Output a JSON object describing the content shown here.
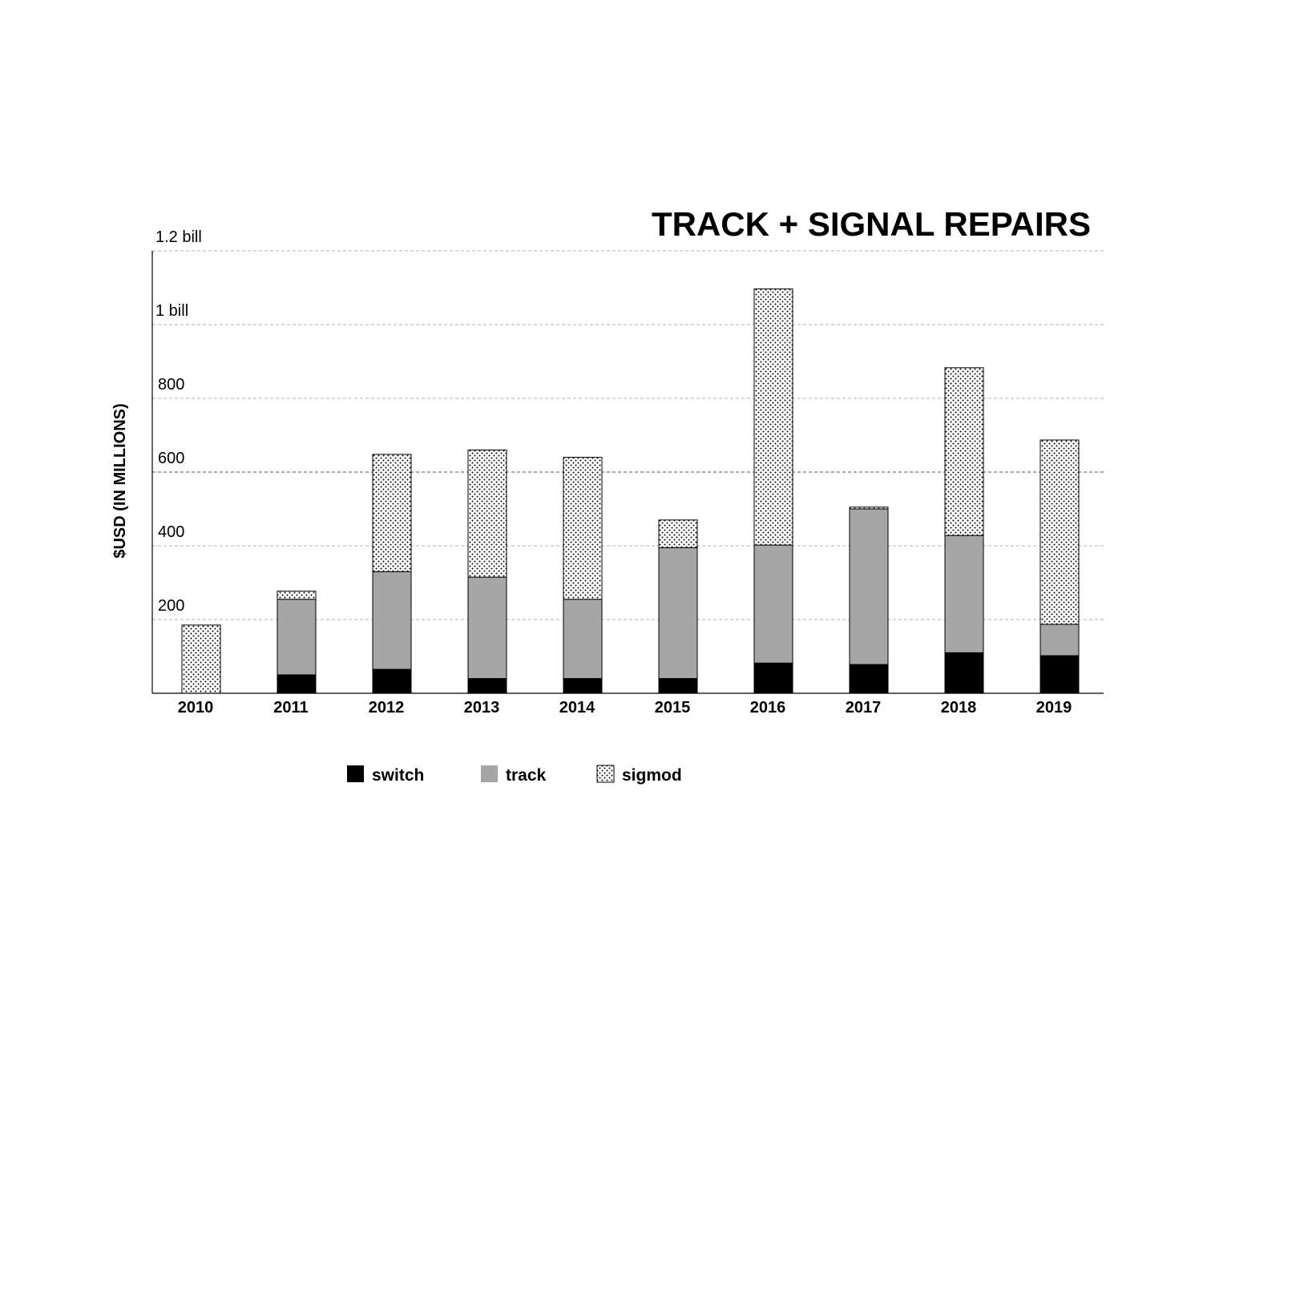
{
  "chart_data": {
    "type": "bar",
    "stacked": true,
    "title": "TRACK + SIGNAL REPAIRS",
    "ylabel": "$USD (IN MILLIONS)",
    "xlabel": "",
    "ylim": [
      0,
      1200
    ],
    "yticks": [
      {
        "value": 200,
        "label": "200"
      },
      {
        "value": 400,
        "label": "400"
      },
      {
        "value": 600,
        "label": "600"
      },
      {
        "value": 800,
        "label": "800"
      },
      {
        "value": 1000,
        "label": "1 bill"
      },
      {
        "value": 1200,
        "label": "1.2 bill"
      }
    ],
    "categories": [
      "2010",
      "2011",
      "2012",
      "2013",
      "2014",
      "2015",
      "2016",
      "2017",
      "2018",
      "2019"
    ],
    "series": [
      {
        "name": "switch",
        "color": "#000000",
        "pattern": "solid",
        "values": [
          0,
          50,
          65,
          40,
          40,
          40,
          82,
          78,
          110,
          102
        ]
      },
      {
        "name": "track",
        "color": "#a6a6a6",
        "pattern": "solid",
        "values": [
          0,
          205,
          265,
          275,
          215,
          355,
          320,
          422,
          318,
          85
        ]
      },
      {
        "name": "sigmod",
        "color": "#ffffff",
        "pattern": "dots",
        "values": [
          185,
          22,
          318,
          345,
          385,
          75,
          695,
          5,
          455,
          500
        ]
      }
    ],
    "grid": true,
    "legend_position": "bottom"
  }
}
